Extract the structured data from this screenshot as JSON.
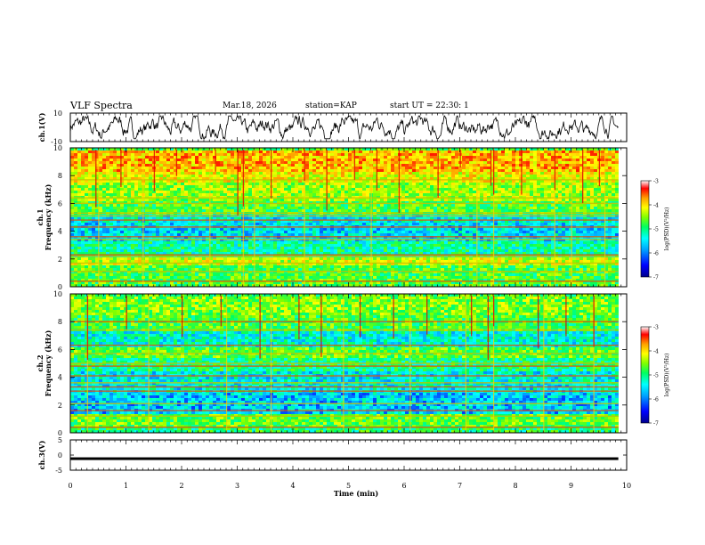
{
  "header": {
    "title": "VLF Spectra",
    "date": "Mar.18, 2026",
    "station": "station=KAP",
    "start": "start UT =  22:30: 1"
  },
  "colors": {
    "accent": "#000000",
    "colormap": [
      "#00008c",
      "#0000ff",
      "#00a0ff",
      "#00ffff",
      "#00ff60",
      "#80ff00",
      "#ffff00",
      "#ffa000",
      "#ff0000",
      "#ffffff"
    ]
  },
  "chart_data": [
    {
      "type": "line",
      "id": "ch1",
      "title": "ch.1(V)",
      "ylabel": "ch.1(V)",
      "ylim": [
        -10,
        10
      ],
      "yticks": [
        "10",
        "-10"
      ],
      "xlim": [
        0,
        10
      ],
      "x_end": 9.85,
      "series": [
        {
          "name": "ch.1",
          "amplitude_range": [
            -8,
            8
          ]
        }
      ]
    },
    {
      "type": "heatmap",
      "id": "spec1",
      "ylabel_line1": "ch.1",
      "ylabel_line2": "Frequency (kHz)",
      "ylim": [
        0,
        10
      ],
      "yticks": [
        "0",
        "2",
        "4",
        "6",
        "8",
        "10"
      ],
      "xlim": [
        0,
        10
      ],
      "x_end": 9.85,
      "colorbar": {
        "label": "log(PSD)(V²/Hz)",
        "range": [
          -7,
          -3
        ],
        "ticks": [
          "-3",
          "-4",
          "-5",
          "-6",
          "-7"
        ]
      },
      "bands": [
        {
          "f": [
            0,
            0.3
          ],
          "level": 0.5
        },
        {
          "f": [
            0.3,
            1.7
          ],
          "level": 0.5
        },
        {
          "f": [
            1.7,
            2.3
          ],
          "level": 0.62
        },
        {
          "f": [
            2.3,
            3.3
          ],
          "level": 0.4
        },
        {
          "f": [
            3.3,
            4.7
          ],
          "level": 0.3
        },
        {
          "f": [
            4.7,
            5.3
          ],
          "level": 0.33
        },
        {
          "f": [
            5.3,
            6.3
          ],
          "level": 0.5
        },
        {
          "f": [
            6.3,
            7.6
          ],
          "level": 0.58
        },
        {
          "f": [
            7.6,
            8.4
          ],
          "level": 0.66
        },
        {
          "f": [
            8.4,
            10
          ],
          "level": 0.74
        }
      ],
      "lines_khz": [
        0.4,
        1.1,
        1.7,
        2.2,
        2.3,
        3.4,
        3.6,
        4.3,
        4.8,
        5.1,
        5.3,
        6.0,
        6.4,
        7.7
      ],
      "spikes_min": [
        0.45,
        0.9,
        1.5,
        1.9,
        2.6,
        3.0,
        3.1,
        3.6,
        4.2,
        4.6,
        5.1,
        5.5,
        5.9,
        6.6,
        7.0,
        7.55,
        7.6,
        8.1,
        8.7,
        9.2,
        9.5
      ],
      "vlines_min": [
        0.5,
        1.3,
        2.5,
        3.1,
        3.3,
        4.2,
        5.4,
        7.3,
        7.6,
        8.7,
        9.0,
        9.6
      ]
    },
    {
      "type": "heatmap",
      "id": "spec2",
      "ylabel_line1": "ch.2",
      "ylabel_line2": "Frequency (kHz)",
      "ylim": [
        0,
        10
      ],
      "yticks": [
        "0",
        "2",
        "4",
        "6",
        "8",
        "10"
      ],
      "xlim": [
        0,
        10
      ],
      "x_end": 9.85,
      "colorbar": {
        "label": "log(PSD)(V²/Hz)",
        "range": [
          -7,
          -3
        ],
        "ticks": [
          "-3",
          "-4",
          "-5",
          "-6",
          "-7"
        ]
      },
      "bands": [
        {
          "f": [
            0,
            0.5
          ],
          "level": 0.45
        },
        {
          "f": [
            0.5,
            1.5
          ],
          "level": 0.52
        },
        {
          "f": [
            1.5,
            3.0
          ],
          "level": 0.28
        },
        {
          "f": [
            3.0,
            4.5
          ],
          "level": 0.33
        },
        {
          "f": [
            4.5,
            5.5
          ],
          "level": 0.42
        },
        {
          "f": [
            5.5,
            6.3
          ],
          "level": 0.52
        },
        {
          "f": [
            6.3,
            7.4
          ],
          "level": 0.35
        },
        {
          "f": [
            7.4,
            8.5
          ],
          "level": 0.5
        },
        {
          "f": [
            8.5,
            10
          ],
          "level": 0.55
        }
      ],
      "lines_khz": [
        0.4,
        1.2,
        1.6,
        2.1,
        3.0,
        3.3,
        3.6,
        4.1,
        4.8,
        5.0,
        5.7,
        6.3,
        7.4,
        8.0
      ],
      "spikes_min": [
        0.3,
        1.0,
        2.0,
        2.7,
        3.4,
        4.1,
        4.5,
        5.2,
        5.8,
        6.4,
        7.2,
        7.5,
        7.6,
        8.4,
        8.9,
        9.4
      ],
      "vlines_min": [
        0.3,
        1.4,
        2.8,
        3.6,
        4.9,
        6.1,
        7.1,
        7.6,
        8.5,
        9.4
      ]
    },
    {
      "type": "line",
      "id": "ch3",
      "title": "ch.3(V)",
      "ylabel": "ch.3(V)",
      "ylim": [
        -5,
        5
      ],
      "yticks": [
        "5",
        "0",
        "-5"
      ],
      "xlim": [
        0,
        10
      ],
      "x_end": 9.85,
      "series": [
        {
          "name": "ch.3",
          "level": -1.1,
          "thickness_v": 0.7
        }
      ]
    }
  ],
  "xaxis": {
    "label": "Time (min)",
    "ticks": [
      "0",
      "1",
      "2",
      "3",
      "4",
      "5",
      "6",
      "7",
      "8",
      "9",
      "10"
    ]
  }
}
